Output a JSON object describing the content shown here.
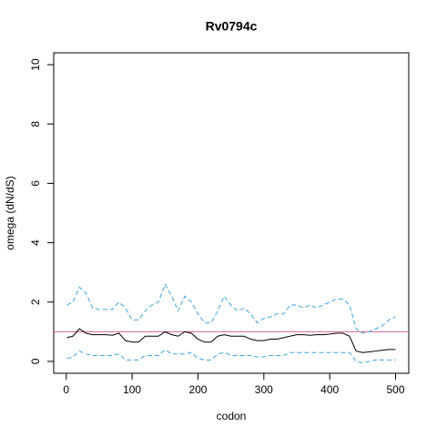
{
  "chart_data": {
    "type": "line",
    "title": "Rv0794c",
    "x_label": "codon",
    "y_label": "omega (dN/dS)",
    "x": [
      1,
      10,
      20,
      30,
      40,
      50,
      60,
      70,
      80,
      90,
      100,
      110,
      120,
      130,
      140,
      150,
      160,
      170,
      180,
      190,
      200,
      210,
      220,
      230,
      240,
      250,
      260,
      270,
      280,
      290,
      300,
      310,
      320,
      330,
      340,
      350,
      360,
      370,
      380,
      390,
      400,
      410,
      420,
      430,
      440,
      450,
      460,
      470,
      480,
      490,
      500
    ],
    "series": [
      {
        "color": "#000000",
        "dashed": false,
        "values": [
          0.8,
          0.85,
          1.1,
          0.95,
          0.9,
          0.9,
          0.9,
          0.88,
          0.95,
          0.7,
          0.65,
          0.65,
          0.85,
          0.85,
          0.85,
          1.0,
          0.9,
          0.85,
          1.0,
          0.95,
          0.75,
          0.65,
          0.65,
          0.85,
          0.9,
          0.85,
          0.85,
          0.85,
          0.75,
          0.7,
          0.7,
          0.75,
          0.75,
          0.8,
          0.85,
          0.9,
          0.9,
          0.88,
          0.9,
          0.9,
          0.92,
          0.95,
          0.95,
          0.85,
          0.35,
          0.3,
          0.32,
          0.35,
          0.38,
          0.4,
          0.4
        ]
      },
      {
        "color": "#3ba6e0",
        "dashed": true,
        "values": [
          1.9,
          2.0,
          2.5,
          2.3,
          1.8,
          1.75,
          1.75,
          1.75,
          2.0,
          1.8,
          1.4,
          1.4,
          1.7,
          1.9,
          2.0,
          2.6,
          2.2,
          1.7,
          2.2,
          2.0,
          1.6,
          1.3,
          1.3,
          1.7,
          2.2,
          1.9,
          1.7,
          1.8,
          1.6,
          1.3,
          1.45,
          1.5,
          1.6,
          1.6,
          1.9,
          1.9,
          1.8,
          1.9,
          1.8,
          1.9,
          2.0,
          2.1,
          2.1,
          1.9,
          1.1,
          0.95,
          1.0,
          1.1,
          1.2,
          1.4,
          1.5
        ]
      },
      {
        "color": "#3ba6e0",
        "dashed": true,
        "values": [
          0.1,
          0.15,
          0.35,
          0.25,
          0.2,
          0.2,
          0.2,
          0.2,
          0.25,
          0.05,
          0.05,
          0.05,
          0.2,
          0.2,
          0.2,
          0.4,
          0.25,
          0.25,
          0.25,
          0.3,
          0.1,
          0.05,
          0.05,
          0.25,
          0.3,
          0.2,
          0.2,
          0.2,
          0.2,
          0.15,
          0.15,
          0.2,
          0.2,
          0.2,
          0.3,
          0.3,
          0.3,
          0.3,
          0.3,
          0.3,
          0.3,
          0.3,
          0.3,
          0.3,
          0.0,
          -0.05,
          0.0,
          0.05,
          0.05,
          0.05,
          0.05
        ]
      }
    ],
    "hline": 1,
    "hline_color": "#d6609f",
    "xlim": [
      -19,
      520
    ],
    "xticks": [
      0,
      100,
      200,
      300,
      400,
      500
    ],
    "ylim": [
      -0.4,
      10.4
    ],
    "yticks": [
      0,
      2,
      4,
      6,
      8,
      10
    ]
  }
}
